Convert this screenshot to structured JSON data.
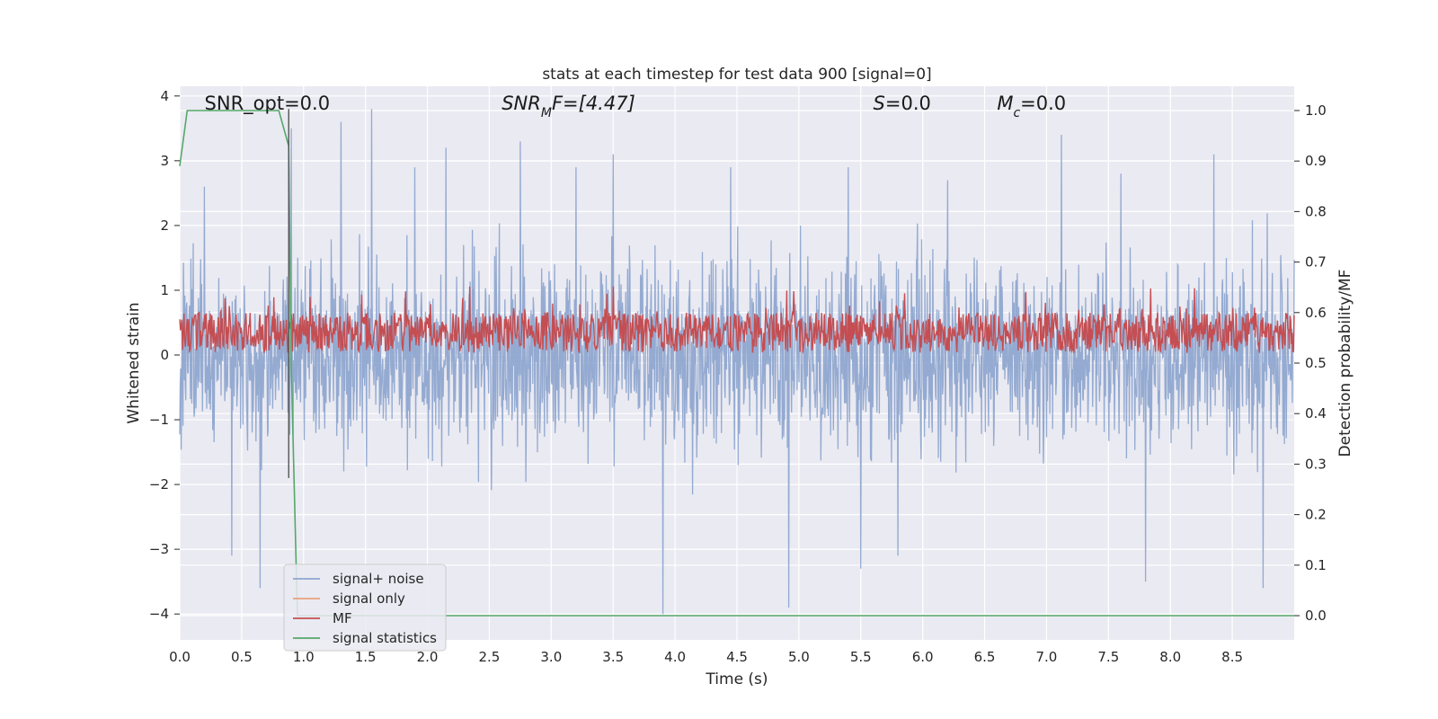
{
  "chart_data": {
    "type": "line",
    "title": "stats at each timestep for test data 900 [signal=0]",
    "xlabel": "Time (s)",
    "ylabel": "Whitened strain",
    "y2label": "Detection probability/MF",
    "xlim": [
      0,
      9.0
    ],
    "ylim": [
      -4.4,
      4.15
    ],
    "y2lim": [
      -0.048,
      1.048
    ],
    "x_ticks": [
      0.0,
      0.5,
      1.0,
      1.5,
      2.0,
      2.5,
      3.0,
      3.5,
      4.0,
      4.5,
      5.0,
      5.5,
      6.0,
      6.5,
      7.0,
      7.5,
      8.0,
      8.5
    ],
    "x_tick_labels": [
      "0.0",
      "0.5",
      "1.0",
      "1.5",
      "2.0",
      "2.5",
      "3.0",
      "3.5",
      "4.0",
      "4.5",
      "5.0",
      "5.5",
      "6.0",
      "6.5",
      "7.0",
      "7.5",
      "8.0",
      "8.5"
    ],
    "y_ticks": [
      -4,
      -3,
      -2,
      -1,
      0,
      1,
      2,
      3,
      4
    ],
    "y_tick_labels": [
      "−4",
      "−3",
      "−2",
      "−1",
      "0",
      "1",
      "2",
      "3",
      "4"
    ],
    "y2_ticks": [
      0.0,
      0.1,
      0.2,
      0.3,
      0.4,
      0.5,
      0.6,
      0.7,
      0.8,
      0.9,
      1.0
    ],
    "y2_tick_labels": [
      "0.0",
      "0.1",
      "0.2",
      "0.3",
      "0.4",
      "0.5",
      "0.6",
      "0.7",
      "0.8",
      "0.9",
      "1.0"
    ],
    "grid": true,
    "legend_position": "lower-left",
    "annotations": [
      {
        "key": "snr-opt",
        "text": "SNR_opt=0.0",
        "x": 0.2,
        "y": 3.9,
        "italic": false
      },
      {
        "key": "snr-mf",
        "text": "SNR",
        "sub": "M",
        "rest": "F=[4.47]",
        "x": 2.6,
        "y": 3.9,
        "italic": true
      },
      {
        "key": "s",
        "text": "S",
        "rest": "=0.0",
        "x": 5.6,
        "y": 3.9,
        "italic": true
      },
      {
        "key": "mc",
        "text": "M",
        "sub": "c",
        "rest": "=0.0",
        "x": 6.6,
        "y": 3.9,
        "italic": true
      }
    ],
    "series": [
      {
        "name": "signal+ noise",
        "color": "#8fa6cf",
        "axis": "left",
        "description": "whitened strain noise, roughly Gaussian, values between -4 and 3.8",
        "envelope_upper": [
          2.2,
          2.6,
          2.4,
          2.3,
          2.5,
          2.6,
          2.4,
          2.5,
          3.1,
          2.6,
          2.4,
          2.7,
          2.6,
          2.4,
          2.3,
          3.5,
          2.8,
          2.6,
          2.6,
          2.7,
          2.5,
          2.3,
          2.6,
          3.1,
          2.4,
          2.7,
          2.5,
          2.3,
          2.6,
          2.4,
          2.3,
          2.5,
          2.7,
          2.5,
          3.5,
          2.6,
          2.4,
          2.4,
          2.6,
          2.7,
          2.4,
          2.5,
          2.8,
          2.5,
          2.6,
          2.4
        ],
        "envelope_lower": [
          -2.4,
          -2.9,
          -3.2,
          -2.8,
          -2.4,
          -2.3,
          -2.2,
          -2.9,
          -2.3,
          -2.6,
          -2.1,
          -2.4,
          -2.5,
          -2.3,
          -2.7,
          -2.6,
          -2.6,
          -2.4,
          -2.3,
          -2.4,
          -4.0,
          -2.8,
          -2.4,
          -2.5,
          -2.3,
          -3.9,
          -2.9,
          -3.4,
          -2.7,
          -3.3,
          -2.6,
          -3.1,
          -2.4,
          -2.8,
          -2.4,
          -2.6,
          -2.4,
          -2.5,
          -2.6,
          -2.7,
          -2.3,
          -2.5,
          -3.2,
          -3.6,
          -2.3,
          -2.2
        ],
        "spikes": [
          [
            0.2,
            2.6
          ],
          [
            0.42,
            -3.1
          ],
          [
            0.65,
            -3.6
          ],
          [
            0.9,
            3.5
          ],
          [
            1.3,
            3.6
          ],
          [
            1.55,
            3.8
          ],
          [
            1.9,
            2.9
          ],
          [
            2.15,
            3.2
          ],
          [
            2.75,
            3.3
          ],
          [
            3.2,
            2.9
          ],
          [
            3.5,
            3.1
          ],
          [
            3.9,
            -4.0
          ],
          [
            4.45,
            2.9
          ],
          [
            4.92,
            -3.9
          ],
          [
            5.4,
            2.9
          ],
          [
            5.5,
            -3.3
          ],
          [
            5.8,
            -3.1
          ],
          [
            6.2,
            2.7
          ],
          [
            7.12,
            3.4
          ],
          [
            7.6,
            2.8
          ],
          [
            7.8,
            -3.5
          ],
          [
            8.35,
            3.1
          ],
          [
            8.75,
            -3.6
          ]
        ]
      },
      {
        "name": "signal only",
        "color": "#e8a27c",
        "axis": "left",
        "values": []
      },
      {
        "name": "MF",
        "color": "#c44e52",
        "axis": "right",
        "description": "matched filter output, fluctuating between 0.52 and 0.66",
        "range": [
          0.52,
          0.66
        ]
      },
      {
        "name": "signal statistics",
        "color": "#55a868",
        "axis": "right",
        "x": [
          0.0,
          0.06,
          0.5,
          0.8,
          0.88,
          0.9,
          0.95,
          1.05,
          2.0,
          3.5,
          5.0,
          7.0,
          9.0
        ],
        "y": [
          0.89,
          1.0,
          1.0,
          1.0,
          0.93,
          0.5,
          0.0,
          0.0,
          0.0,
          0.0,
          0.0,
          0.0,
          0.0
        ]
      }
    ],
    "vline": {
      "x": 0.88,
      "color": "#555555",
      "y_top": 3.8
    }
  }
}
